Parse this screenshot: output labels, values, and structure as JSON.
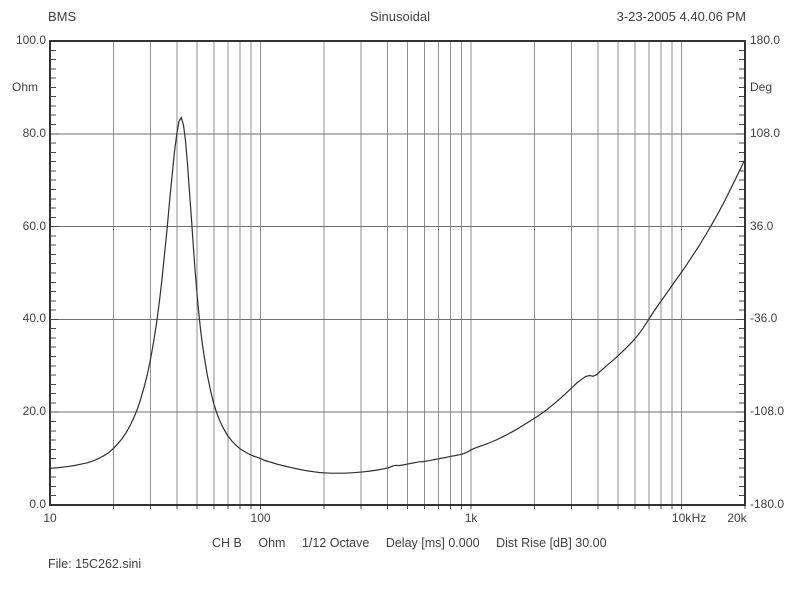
{
  "header": {
    "left": "BMS",
    "center": "Sinusoidal",
    "right": "3-23-2005 4.40.06 PM"
  },
  "footer": {
    "status": [
      "CH B",
      "Ohm",
      "1/12 Octave",
      "Delay [ms] 0.000",
      "Dist Rise [dB] 30.00"
    ],
    "file_label": "File: 15C262.sini"
  },
  "colors": {
    "background": "#ffffff",
    "frame": "#333333",
    "grid_vertical": "#8f8f8f",
    "grid_horizontal": "#6f6f6f",
    "tick": "#4a4a4a",
    "curve": "#2f2f2f",
    "text": "#3f3f3f"
  },
  "chart_data": {
    "type": "line",
    "title": "Sinusoidal",
    "x_axis": {
      "scale": "log",
      "min": 10,
      "max": 20000,
      "unit": "Hz",
      "tick_labels": [
        {
          "value": 10,
          "label": "10"
        },
        {
          "value": 100,
          "label": "100"
        },
        {
          "value": 1000,
          "label": "1k"
        },
        {
          "value": 10000,
          "label": "10k"
        },
        {
          "value": 20000,
          "label": "20k"
        }
      ],
      "gridlines": [
        20,
        30,
        40,
        50,
        60,
        70,
        80,
        90,
        100,
        200,
        300,
        400,
        500,
        600,
        700,
        800,
        900,
        1000,
        2000,
        3000,
        4000,
        5000,
        6000,
        7000,
        8000,
        9000,
        10000
      ]
    },
    "y_left": {
      "label": "Ohm",
      "min": 0,
      "max": 100,
      "major_step": 20,
      "minor_step": 2,
      "gridlines": [
        20,
        40,
        60,
        80
      ],
      "tick_labels": [
        {
          "value": 100,
          "label": "100.0"
        },
        {
          "value": 80,
          "label": "80.0"
        },
        {
          "value": 60,
          "label": "60.0"
        },
        {
          "value": 40,
          "label": "40.0"
        },
        {
          "value": 20,
          "label": "20.0"
        },
        {
          "value": 0,
          "label": "0.0"
        }
      ]
    },
    "y_right": {
      "label": "Deg",
      "min": -180,
      "max": 180,
      "major_step": 72,
      "minor_step": 7.2,
      "tick_labels": [
        {
          "value": 180,
          "label": "180.0"
        },
        {
          "value": 108,
          "label": "108.0"
        },
        {
          "value": 36,
          "label": "36.0"
        },
        {
          "value": -36,
          "label": "-36.0"
        },
        {
          "value": -108,
          "label": "-108.0"
        },
        {
          "value": -180,
          "label": "-180.0"
        }
      ]
    },
    "legend": "none",
    "grid": true,
    "series": [
      {
        "name": "impedance-magnitude",
        "unit": "Ohm",
        "points": [
          [
            10,
            7.9
          ],
          [
            11,
            8.05
          ],
          [
            12,
            8.25
          ],
          [
            13,
            8.5
          ],
          [
            14,
            8.8
          ],
          [
            15,
            9.1
          ],
          [
            16,
            9.5
          ],
          [
            17,
            10.0
          ],
          [
            18,
            10.6
          ],
          [
            19,
            11.3
          ],
          [
            20,
            12.2
          ],
          [
            21,
            13.2
          ],
          [
            22,
            14.3
          ],
          [
            23,
            15.6
          ],
          [
            24,
            17.1
          ],
          [
            25,
            18.8
          ],
          [
            26,
            20.7
          ],
          [
            27,
            22.9
          ],
          [
            28,
            25.4
          ],
          [
            29,
            28.2
          ],
          [
            30,
            31.4
          ],
          [
            31,
            35
          ],
          [
            32,
            39
          ],
          [
            33,
            43.5
          ],
          [
            34,
            48.5
          ],
          [
            35,
            54
          ],
          [
            36,
            59.5
          ],
          [
            37,
            65.5
          ],
          [
            38,
            71
          ],
          [
            39,
            76
          ],
          [
            40,
            80
          ],
          [
            41,
            82.7
          ],
          [
            42,
            83.5
          ],
          [
            43,
            82
          ],
          [
            44,
            78.5
          ],
          [
            45,
            73.5
          ],
          [
            46,
            67.5
          ],
          [
            47,
            61.5
          ],
          [
            48,
            55.5
          ],
          [
            49,
            50
          ],
          [
            50,
            45
          ],
          [
            51,
            41
          ],
          [
            52,
            37.5
          ],
          [
            53,
            34.5
          ],
          [
            54,
            32
          ],
          [
            55,
            29.8
          ],
          [
            56,
            27.8
          ],
          [
            58,
            24.5
          ],
          [
            60,
            21.8
          ],
          [
            62,
            19.8
          ],
          [
            64,
            18.2
          ],
          [
            66,
            16.9
          ],
          [
            68,
            15.8
          ],
          [
            70,
            14.9
          ],
          [
            73,
            13.8
          ],
          [
            76,
            13
          ],
          [
            80,
            12.1
          ],
          [
            84,
            11.5
          ],
          [
            88,
            11
          ],
          [
            92,
            10.6
          ],
          [
            96,
            10.3
          ],
          [
            100,
            10.0
          ],
          [
            105,
            9.6
          ],
          [
            110,
            9.3
          ],
          [
            115,
            9.05
          ],
          [
            120,
            8.8
          ],
          [
            130,
            8.4
          ],
          [
            140,
            8.05
          ],
          [
            150,
            7.75
          ],
          [
            160,
            7.5
          ],
          [
            170,
            7.3
          ],
          [
            180,
            7.15
          ],
          [
            190,
            7.0
          ],
          [
            200,
            6.95
          ],
          [
            215,
            6.85
          ],
          [
            230,
            6.85
          ],
          [
            250,
            6.85
          ],
          [
            270,
            6.95
          ],
          [
            290,
            7.05
          ],
          [
            310,
            7.15
          ],
          [
            330,
            7.3
          ],
          [
            350,
            7.45
          ],
          [
            370,
            7.65
          ],
          [
            390,
            7.85
          ],
          [
            410,
            8.1
          ],
          [
            425,
            8.45
          ],
          [
            440,
            8.55
          ],
          [
            455,
            8.5
          ],
          [
            470,
            8.6
          ],
          [
            490,
            8.75
          ],
          [
            510,
            8.9
          ],
          [
            530,
            9.05
          ],
          [
            550,
            9.2
          ],
          [
            570,
            9.3
          ],
          [
            590,
            9.35
          ],
          [
            610,
            9.45
          ],
          [
            630,
            9.55
          ],
          [
            650,
            9.65
          ],
          [
            670,
            9.8
          ],
          [
            700,
            9.95
          ],
          [
            730,
            10.1
          ],
          [
            760,
            10.25
          ],
          [
            800,
            10.5
          ],
          [
            840,
            10.65
          ],
          [
            880,
            10.85
          ],
          [
            920,
            11.05
          ],
          [
            960,
            11.4
          ],
          [
            1000,
            11.9
          ],
          [
            1050,
            12.3
          ],
          [
            1100,
            12.65
          ],
          [
            1150,
            12.95
          ],
          [
            1200,
            13.25
          ],
          [
            1300,
            13.9
          ],
          [
            1400,
            14.6
          ],
          [
            1500,
            15.3
          ],
          [
            1600,
            16.0
          ],
          [
            1700,
            16.7
          ],
          [
            1800,
            17.4
          ],
          [
            1900,
            18.05
          ],
          [
            2000,
            18.7
          ],
          [
            2100,
            19.3
          ],
          [
            2200,
            19.95
          ],
          [
            2300,
            20.6
          ],
          [
            2400,
            21.3
          ],
          [
            2600,
            22.6
          ],
          [
            2800,
            23.9
          ],
          [
            3000,
            25.2
          ],
          [
            3200,
            26.4
          ],
          [
            3350,
            27.1
          ],
          [
            3500,
            27.7
          ],
          [
            3650,
            27.9
          ],
          [
            3800,
            27.75
          ],
          [
            3950,
            28.1
          ],
          [
            4100,
            28.8
          ],
          [
            4300,
            29.6
          ],
          [
            4500,
            30.4
          ],
          [
            4750,
            31.3
          ],
          [
            5000,
            32.2
          ],
          [
            5250,
            33.1
          ],
          [
            5500,
            34.0
          ],
          [
            5750,
            34.9
          ],
          [
            6000,
            35.8
          ],
          [
            6300,
            37
          ],
          [
            6600,
            38.3
          ],
          [
            7000,
            40.1
          ],
          [
            7400,
            41.8
          ],
          [
            7800,
            43.3
          ],
          [
            8200,
            44.7
          ],
          [
            8600,
            46
          ],
          [
            9000,
            47.3
          ],
          [
            9500,
            48.8
          ],
          [
            10000,
            50.2
          ],
          [
            10500,
            51.6
          ],
          [
            11000,
            53
          ],
          [
            11500,
            54.3
          ],
          [
            12000,
            55.6
          ],
          [
            13000,
            58.2
          ],
          [
            14000,
            60.7
          ],
          [
            15000,
            63.1
          ],
          [
            16000,
            65.5
          ],
          [
            17000,
            67.9
          ],
          [
            18000,
            70.2
          ],
          [
            19000,
            72.4
          ],
          [
            20000,
            74.5
          ]
        ]
      }
    ]
  }
}
